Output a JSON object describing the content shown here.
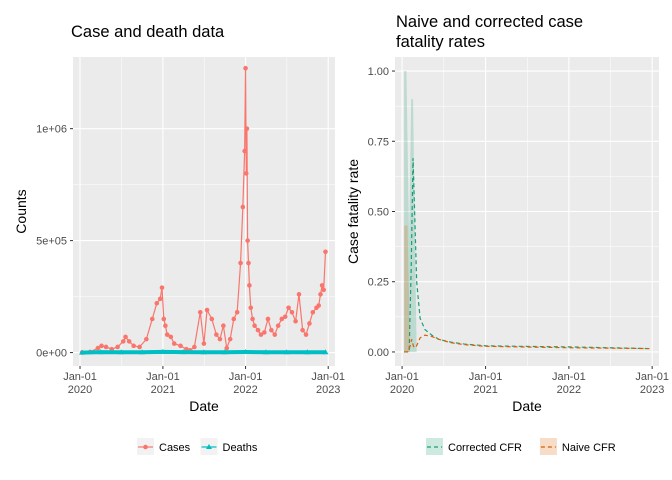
{
  "chart_data": [
    {
      "type": "line",
      "title": "Case and death data",
      "xlabel": "Date",
      "ylabel": "Counts",
      "x_ticks": [
        "Jan-01\n2020",
        "Jan-01\n2021",
        "Jan-01\n2022",
        "Jan-01\n2023"
      ],
      "x_tick_dates": [
        "2020-01-01",
        "2021-01-01",
        "2022-01-01",
        "2023-01-01"
      ],
      "xlim": [
        "2019-12-01",
        "2023-01-31"
      ],
      "y_ticks": [
        "0e+00",
        "5e+05",
        "1e+06"
      ],
      "y_tick_values": [
        0,
        500000,
        1000000
      ],
      "ylim": [
        -60000,
        1320000
      ],
      "grid": true,
      "legend": "bottom",
      "colors": {
        "cases": "#F8766D",
        "deaths": "#00BFC4",
        "panel": "#EBEBEB",
        "grid": "#FFFFFF"
      },
      "series": [
        {
          "name": "Cases",
          "marker": "circle",
          "x": [
            "2020-01-10",
            "2020-02-15",
            "2020-03-20",
            "2020-04-05",
            "2020-04-25",
            "2020-05-20",
            "2020-06-15",
            "2020-07-10",
            "2020-07-20",
            "2020-08-05",
            "2020-08-25",
            "2020-09-20",
            "2020-10-20",
            "2020-11-15",
            "2020-12-05",
            "2020-12-20",
            "2020-12-28",
            "2021-01-05",
            "2021-01-12",
            "2021-01-20",
            "2021-02-05",
            "2021-02-20",
            "2021-03-20",
            "2021-04-15",
            "2021-05-01",
            "2021-05-20",
            "2021-06-15",
            "2021-07-01",
            "2021-07-15",
            "2021-08-05",
            "2021-08-25",
            "2021-09-10",
            "2021-09-25",
            "2021-10-10",
            "2021-10-25",
            "2021-11-10",
            "2021-11-25",
            "2021-12-10",
            "2021-12-20",
            "2021-12-28",
            "2022-01-01",
            "2022-01-04",
            "2022-01-07",
            "2022-01-10",
            "2022-01-14",
            "2022-01-18",
            "2022-01-24",
            "2022-02-01",
            "2022-02-10",
            "2022-02-25",
            "2022-03-10",
            "2022-03-25",
            "2022-04-10",
            "2022-04-25",
            "2022-05-10",
            "2022-05-25",
            "2022-06-10",
            "2022-06-25",
            "2022-07-10",
            "2022-07-25",
            "2022-08-10",
            "2022-08-25",
            "2022-09-10",
            "2022-09-25",
            "2022-10-10",
            "2022-10-25",
            "2022-11-10",
            "2022-11-20",
            "2022-11-28",
            "2022-12-05",
            "2022-12-12",
            "2022-12-20"
          ],
          "values": [
            500,
            3000,
            20000,
            30000,
            25000,
            15000,
            25000,
            50000,
            70000,
            50000,
            30000,
            25000,
            60000,
            150000,
            220000,
            240000,
            290000,
            150000,
            120000,
            80000,
            70000,
            40000,
            30000,
            15000,
            10000,
            25000,
            180000,
            40000,
            190000,
            150000,
            80000,
            60000,
            120000,
            20000,
            60000,
            150000,
            180000,
            400000,
            650000,
            900000,
            1270000,
            800000,
            1000000,
            500000,
            400000,
            300000,
            200000,
            150000,
            120000,
            100000,
            80000,
            90000,
            150000,
            100000,
            80000,
            120000,
            150000,
            160000,
            200000,
            180000,
            140000,
            260000,
            100000,
            80000,
            130000,
            180000,
            200000,
            210000,
            260000,
            300000,
            280000,
            450000
          ]
        },
        {
          "name": "Deaths",
          "marker": "triangle",
          "x": [
            "2020-01-10",
            "2020-04-01",
            "2020-07-01",
            "2020-10-01",
            "2021-01-01",
            "2021-04-01",
            "2021-07-01",
            "2021-10-01",
            "2022-01-01",
            "2022-04-01",
            "2022-07-01",
            "2022-10-01",
            "2022-12-20"
          ],
          "values": [
            0,
            2000,
            1500,
            1500,
            3000,
            2000,
            1500,
            1500,
            2500,
            1500,
            1500,
            1500,
            1500
          ]
        }
      ]
    },
    {
      "type": "area",
      "title": "Naive and corrected case\nfatality rates",
      "xlabel": "Date",
      "ylabel": "Case fatality rate",
      "x_ticks": [
        "Jan-01\n2020",
        "Jan-01\n2021",
        "Jan-01\n2022",
        "Jan-01\n2023"
      ],
      "x_tick_dates": [
        "2020-01-01",
        "2021-01-01",
        "2022-01-01",
        "2023-01-01"
      ],
      "xlim": [
        "2019-12-01",
        "2023-01-31"
      ],
      "y_ticks": [
        "0.00",
        "0.25",
        "0.50",
        "0.75",
        "1.00"
      ],
      "y_tick_values": [
        0,
        0.25,
        0.5,
        0.75,
        1.0
      ],
      "ylim": [
        -0.05,
        1.05
      ],
      "grid": true,
      "legend": "bottom",
      "colors": {
        "corrected": "#1B9E77",
        "naive": "#D95F02",
        "panel": "#EBEBEB",
        "grid": "#FFFFFF"
      },
      "series": [
        {
          "name": "Corrected CFR",
          "line": "dashed",
          "x": [
            "2020-01-10",
            "2020-01-20",
            "2020-02-01",
            "2020-02-10",
            "2020-02-18",
            "2020-02-25",
            "2020-03-05",
            "2020-03-20",
            "2020-04-10",
            "2020-05-10",
            "2020-06-10",
            "2020-08-01",
            "2020-10-01",
            "2021-01-01",
            "2021-06-01",
            "2022-01-01",
            "2022-12-20"
          ],
          "values": [
            0.0,
            0.0,
            0.0,
            0.3,
            0.69,
            0.5,
            0.25,
            0.12,
            0.08,
            0.06,
            0.045,
            0.035,
            0.028,
            0.022,
            0.02,
            0.018,
            0.012
          ],
          "band_low": [
            0.0,
            0.0,
            0.0,
            0.0,
            0.0,
            0.0,
            0.0,
            0.0,
            0.0,
            0.0,
            0.0,
            0.0,
            0.0,
            0.0,
            0.0,
            0.0,
            0.0
          ],
          "band_high": [
            1.0,
            1.0,
            0.4,
            0.9,
            0.9,
            0.5,
            0.0,
            0.0,
            0.0,
            0.0,
            0.0,
            0.0,
            0.0,
            0.0,
            0.0,
            0.0,
            0.0
          ]
        },
        {
          "name": "Naive CFR",
          "line": "dashed",
          "x": [
            "2020-01-10",
            "2020-01-25",
            "2020-02-05",
            "2020-02-12",
            "2020-02-20",
            "2020-03-01",
            "2020-03-20",
            "2020-04-10",
            "2020-05-10",
            "2020-06-10",
            "2020-08-01",
            "2020-10-01",
            "2021-01-01",
            "2021-06-01",
            "2022-01-01",
            "2022-12-20"
          ],
          "values": [
            0.0,
            0.0,
            0.02,
            0.045,
            0.02,
            0.015,
            0.05,
            0.06,
            0.055,
            0.045,
            0.033,
            0.026,
            0.02,
            0.018,
            0.015,
            0.012
          ],
          "band_low": [
            0.0,
            0.0,
            0.0,
            0.0,
            0.0,
            0.0,
            0.0,
            0.0,
            0.0,
            0.0,
            0.0,
            0.0,
            0.0,
            0.0,
            0.0,
            0.0
          ],
          "band_high": [
            0.45,
            0.45,
            0.0,
            0.0,
            0.0,
            0.0,
            0.0,
            0.0,
            0.0,
            0.0,
            0.0,
            0.0,
            0.0,
            0.0,
            0.0,
            0.0
          ]
        }
      ]
    }
  ]
}
